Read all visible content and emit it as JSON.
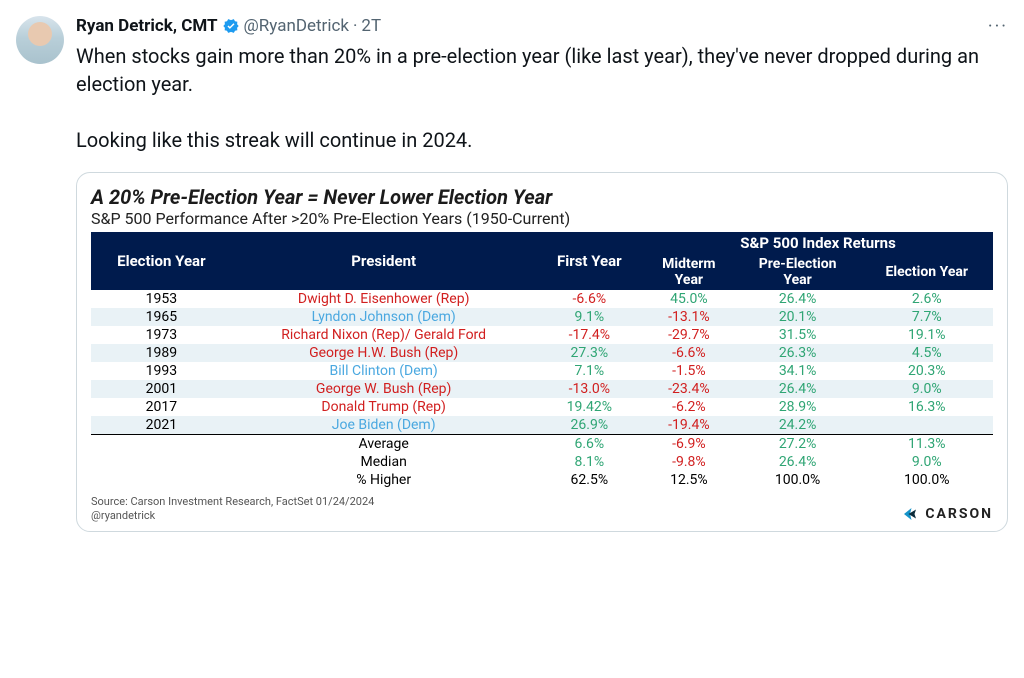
{
  "tweet": {
    "display_name": "Ryan Detrick, CMT",
    "handle": "@RyanDetrick",
    "separator": "·",
    "time": "2T",
    "more": "···",
    "body": "When stocks gain more than 20% in a pre-election year (like last year), they've never dropped during an election year.\n\nLooking like this streak will continue in 2024."
  },
  "chart": {
    "title": "A 20% Pre-Election Year = Never Lower Election Year",
    "subtitle": "S&P 500 Performance After >20% Pre-Election Years (1950-Current)",
    "header_group": "S&P 500 Index Returns",
    "columns": [
      "Election Year",
      "President",
      "First Year",
      "Midterm Year",
      "Pre-Election Year",
      "Election Year"
    ],
    "colors": {
      "header_bg": "#001b4d",
      "header_text": "#ffffff",
      "row_alt_bg": "#e9f2f6",
      "rep": "#d11f1f",
      "dem": "#4aa8e0",
      "neg": "#d11f1f",
      "pos": "#2fa574",
      "neutral": "#000000",
      "brand_blue": "#1593c9",
      "brand_dark": "#0b2b3a"
    },
    "rows": [
      {
        "year": "1953",
        "pres": "Dwight D. Eisenhower (Rep)",
        "party": "rep",
        "fy": "-6.6%",
        "fyc": "neg",
        "mid": "45.0%",
        "midc": "pos",
        "pre": "26.4%",
        "prec": "pos",
        "ey": "2.6%",
        "eyc": "pos"
      },
      {
        "year": "1965",
        "pres": "Lyndon Johnson (Dem)",
        "party": "dem",
        "fy": "9.1%",
        "fyc": "pos",
        "mid": "-13.1%",
        "midc": "neg",
        "pre": "20.1%",
        "prec": "pos",
        "ey": "7.7%",
        "eyc": "pos"
      },
      {
        "year": "1973",
        "pres": "Richard Nixon (Rep)/ Gerald Ford",
        "party": "rep",
        "fy": "-17.4%",
        "fyc": "neg",
        "mid": "-29.7%",
        "midc": "neg",
        "pre": "31.5%",
        "prec": "pos",
        "ey": "19.1%",
        "eyc": "pos"
      },
      {
        "year": "1989",
        "pres": "George H.W. Bush (Rep)",
        "party": "rep",
        "fy": "27.3%",
        "fyc": "pos",
        "mid": "-6.6%",
        "midc": "neg",
        "pre": "26.3%",
        "prec": "pos",
        "ey": "4.5%",
        "eyc": "pos"
      },
      {
        "year": "1993",
        "pres": "Bill Clinton (Dem)",
        "party": "dem",
        "fy": "7.1%",
        "fyc": "pos",
        "mid": "-1.5%",
        "midc": "neg",
        "pre": "34.1%",
        "prec": "pos",
        "ey": "20.3%",
        "eyc": "pos"
      },
      {
        "year": "2001",
        "pres": "George W. Bush (Rep)",
        "party": "rep",
        "fy": "-13.0%",
        "fyc": "neg",
        "mid": "-23.4%",
        "midc": "neg",
        "pre": "26.4%",
        "prec": "pos",
        "ey": "9.0%",
        "eyc": "pos"
      },
      {
        "year": "2017",
        "pres": "Donald Trump (Rep)",
        "party": "rep",
        "fy": "19.42%",
        "fyc": "pos",
        "mid": "-6.2%",
        "midc": "neg",
        "pre": "28.9%",
        "prec": "pos",
        "ey": "16.3%",
        "eyc": "pos"
      },
      {
        "year": "2021",
        "pres": "Joe Biden (Dem)",
        "party": "dem",
        "fy": "26.9%",
        "fyc": "pos",
        "mid": "-19.4%",
        "midc": "neg",
        "pre": "24.2%",
        "prec": "pos",
        "ey": "",
        "eyc": "neutral"
      }
    ],
    "summary": [
      {
        "label": "Average",
        "fy": "6.6%",
        "fyc": "pos",
        "mid": "-6.9%",
        "midc": "neg",
        "pre": "27.2%",
        "prec": "pos",
        "ey": "11.3%",
        "eyc": "pos"
      },
      {
        "label": "Median",
        "fy": "8.1%",
        "fyc": "pos",
        "mid": "-9.8%",
        "midc": "neg",
        "pre": "26.4%",
        "prec": "pos",
        "ey": "9.0%",
        "eyc": "pos"
      },
      {
        "label": "% Higher",
        "fy": "62.5%",
        "fyc": "neutral",
        "mid": "12.5%",
        "midc": "neutral",
        "pre": "100.0%",
        "prec": "neutral",
        "ey": "100.0%",
        "eyc": "neutral"
      }
    ],
    "source_line1": "Source: Carson Investment Research, FactSet 01/24/2024",
    "source_line2": "@ryandetrick",
    "brand": "CARSON"
  }
}
